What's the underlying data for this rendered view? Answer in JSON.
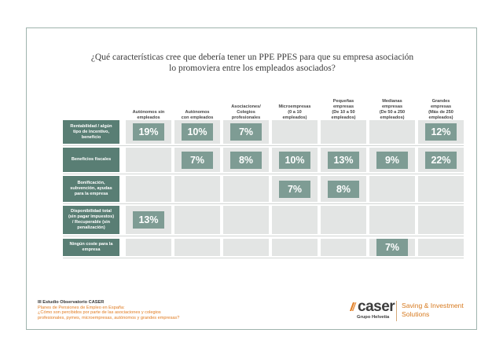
{
  "chart_data": {
    "type": "table",
    "title_lines": [
      "¿Qué características cree que debería tener un PPE PPES para que su empresa asociación",
      "lo promoviera entre los empleados asociados?"
    ],
    "columns": [
      [
        "Autónomos sin",
        "empleados"
      ],
      [
        "Autónomos",
        "con empleados"
      ],
      [
        "Asociaciones/",
        "Colegios",
        "profesionales"
      ],
      [
        "Microempresas",
        "(0 a 10",
        "empleados)"
      ],
      [
        "Pequeñas",
        "empresas",
        "(De 10 a 50",
        "empleados)"
      ],
      [
        "Medianas",
        "empresas",
        "(De 50 a 250",
        "empleados)"
      ],
      [
        "Grandes",
        "empresas",
        "(Más de 250",
        "empleados)"
      ]
    ],
    "rows": [
      {
        "label": [
          "Rentabilidad / algún",
          "tipo de incentivo,",
          "beneficio"
        ],
        "values": [
          19,
          10,
          7,
          null,
          null,
          null,
          12
        ]
      },
      {
        "label": [
          "Beneficios fiscales"
        ],
        "values": [
          null,
          7,
          8,
          10,
          13,
          9,
          22
        ]
      },
      {
        "label": [
          "Bonificación,",
          "subvención, ayudas",
          "para la empresa"
        ],
        "values": [
          null,
          null,
          null,
          7,
          8,
          null,
          null
        ]
      },
      {
        "label": [
          "Disponibilidad total",
          "(sin pagar impuestos)",
          "/ Recuperable (sin",
          "penalización)"
        ],
        "values": [
          13,
          null,
          null,
          null,
          null,
          null,
          null
        ]
      },
      {
        "label": [
          "Ningún coste para la",
          "empresa"
        ],
        "values": [
          null,
          null,
          null,
          null,
          null,
          7,
          null
        ]
      }
    ],
    "unit": "%"
  },
  "footer": {
    "study": "III Estudio Observatorio CASER",
    "subtitle_lines": [
      "Planes de Pensiones de Empleo en España:",
      "¿Cómo son percibidos por parte de las asociaciones y colegios",
      "profesionales, pymes, microempresas, autónomos y grandes empresas?"
    ]
  },
  "brand": {
    "logo_text": "caser",
    "group_text": "Grupo Helvetia",
    "tagline_line1": "Saving & Investment",
    "tagline_line2": "Solutions",
    "accent_color": "#597e74",
    "value_color": "#7e9c94",
    "orange": "#e07a1e"
  }
}
